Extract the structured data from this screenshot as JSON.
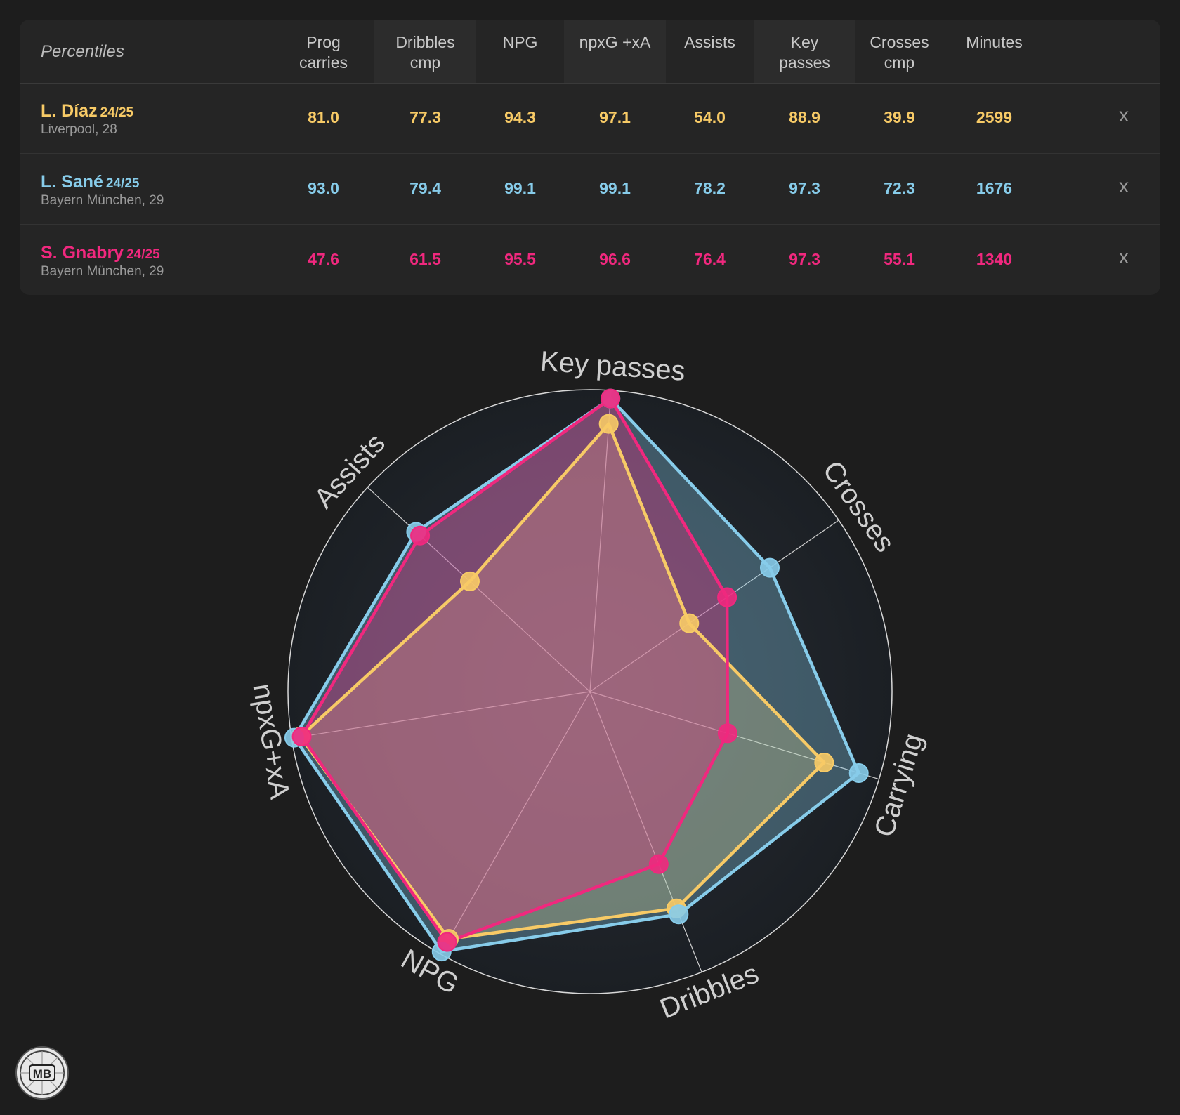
{
  "table": {
    "header_label": "Percentiles",
    "columns": [
      "Prog\ncarries",
      "Dribbles\ncmp",
      "NPG",
      "npxG +xA",
      "Assists",
      "Key\npasses",
      "Crosses\ncmp",
      "Minutes"
    ],
    "remove_label": "x",
    "rows": [
      {
        "name": "L. Díaz",
        "season": "24/25",
        "sub": "Liverpool, 28",
        "color": "#f7ca66",
        "values": [
          "81.0",
          "77.3",
          "94.3",
          "97.1",
          "54.0",
          "88.9",
          "39.9",
          "2599"
        ]
      },
      {
        "name": "L. Sané",
        "season": "24/25",
        "sub": "Bayern München, 29",
        "color": "#87ccea",
        "values": [
          "93.0",
          "79.4",
          "99.1",
          "99.1",
          "78.2",
          "97.3",
          "72.3",
          "1676"
        ]
      },
      {
        "name": "S. Gnabry",
        "season": "24/25",
        "sub": "Bayern München, 29",
        "color": "#f0287e",
        "values": [
          "47.6",
          "61.5",
          "95.5",
          "96.6",
          "76.4",
          "97.3",
          "55.1",
          "1340"
        ]
      }
    ]
  },
  "chart_data": {
    "type": "radar",
    "axes": [
      "Key passes",
      "Crosses",
      "Carrying",
      "Dribbles",
      "NPG",
      "npxG+xA",
      "Assists"
    ],
    "range": [
      0,
      100
    ],
    "series": [
      {
        "name": "L. Díaz",
        "color": "#f7ca66",
        "values": [
          88.9,
          39.9,
          81.0,
          77.3,
          94.3,
          97.1,
          54.0
        ]
      },
      {
        "name": "L. Sané",
        "color": "#87ccea",
        "values": [
          97.3,
          72.3,
          93.0,
          79.4,
          99.1,
          99.1,
          78.2
        ]
      },
      {
        "name": "S. Gnabry",
        "color": "#f0287e",
        "values": [
          97.3,
          55.1,
          47.6,
          61.5,
          95.5,
          96.6,
          76.4
        ]
      }
    ]
  },
  "logo": {
    "text": "MB"
  }
}
